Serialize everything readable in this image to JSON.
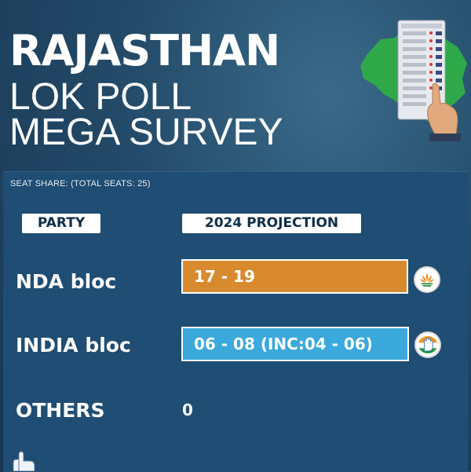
{
  "header": {
    "title_line1": "RAJASTHAN",
    "title_line2": "LOK POLL",
    "title_line3": "MEGA SURVEY"
  },
  "panel": {
    "subtitle": "SEAT SHARE: (TOTAL SEATS: 25)",
    "column_party": "PARTY",
    "column_projection": "2024 PROJECTION",
    "rows": [
      {
        "party": "NDA bloc",
        "projection": "17 - 19",
        "color": "#d98a2f",
        "logo": "bjp-lotus-icon"
      },
      {
        "party": "INDIA bloc",
        "projection": "06 - 08 (INC:04 - 06)",
        "color": "#3ba9dc",
        "logo": "congress-hand-icon"
      },
      {
        "party": "OTHERS",
        "projection": "0"
      }
    ]
  },
  "colors": {
    "background": "#234a68",
    "panel": "#1f4d73",
    "map_green": "#2fa84a"
  }
}
